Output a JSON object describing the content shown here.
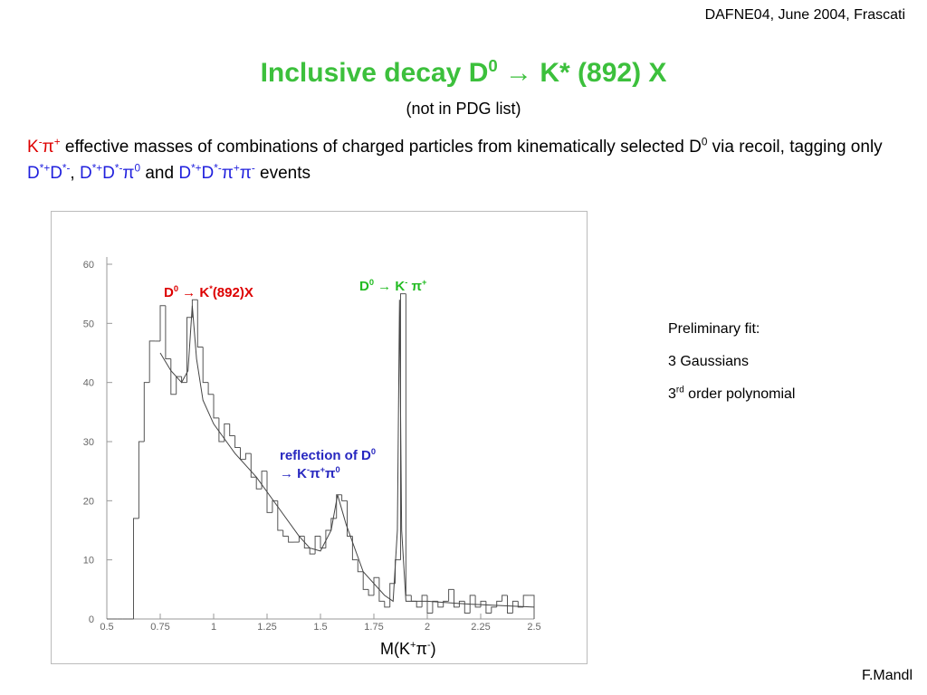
{
  "header": {
    "conference": "DAFNE04, June 2004, Frascati",
    "title": [
      {
        "t": "Inclusive decay D",
        "sup": "0"
      },
      {
        "t": " → K* (892) X"
      }
    ],
    "subtitle": "(not in PDG list)"
  },
  "description": [
    {
      "t": "K",
      "sup": "-",
      "color": "#dd0000"
    },
    {
      "t": "π",
      "sup": "+",
      "color": "#dd0000"
    },
    {
      "t": " effective masses of combinations of charged particles from kinematically selected D",
      "sup": "0"
    },
    {
      "t": " via recoil, tagging only "
    },
    {
      "t": "D",
      "sup": "*+",
      "color": "#1f1fdd"
    },
    {
      "t": "D",
      "sup": "*-",
      "color": "#1f1fdd"
    },
    {
      "t": ", "
    },
    {
      "t": "D",
      "sup": "*+",
      "color": "#1f1fdd"
    },
    {
      "t": "D",
      "sup": "*-",
      "color": "#1f1fdd"
    },
    {
      "t": "π",
      "sup": "0",
      "color": "#1f1fdd"
    },
    {
      "t": " and "
    },
    {
      "t": "D",
      "sup": "*+",
      "color": "#1f1fdd"
    },
    {
      "t": "D",
      "sup": "*-",
      "color": "#1f1fdd"
    },
    {
      "t": "π",
      "sup": "+",
      "color": "#1f1fdd"
    },
    {
      "t": "π",
      "sup": "-",
      "color": "#1f1fdd"
    },
    {
      "t": " events"
    }
  ],
  "chart_data": {
    "type": "histogram",
    "bins": [
      0.5,
      0.525,
      0.55,
      0.575,
      0.6,
      0.625,
      0.65,
      0.675,
      0.7,
      0.725,
      0.75,
      0.775,
      0.8,
      0.825,
      0.85,
      0.875,
      0.9,
      0.925,
      0.95,
      0.975,
      1.0,
      1.025,
      1.05,
      1.075,
      1.1,
      1.125,
      1.15,
      1.175,
      1.2,
      1.225,
      1.25,
      1.275,
      1.3,
      1.325,
      1.35,
      1.375,
      1.4,
      1.425,
      1.45,
      1.475,
      1.5,
      1.525,
      1.55,
      1.575,
      1.6,
      1.625,
      1.65,
      1.675,
      1.7,
      1.725,
      1.75,
      1.775,
      1.8,
      1.825,
      1.85,
      1.875,
      1.9,
      1.925,
      1.95,
      1.975,
      2.0,
      2.025,
      2.05,
      2.075,
      2.1,
      2.125,
      2.15,
      2.175,
      2.2,
      2.225,
      2.25,
      2.275,
      2.3,
      2.325,
      2.35,
      2.375,
      2.4,
      2.425,
      2.45,
      2.475,
      2.5
    ],
    "values": [
      0,
      0,
      0,
      0,
      0,
      17,
      30,
      40,
      47,
      47,
      53,
      44,
      38,
      41,
      40,
      51,
      54,
      46,
      40,
      38,
      34,
      30,
      33,
      31,
      29,
      27,
      28,
      24,
      22,
      25,
      18,
      20,
      15,
      14,
      13,
      13,
      14,
      12,
      11,
      14,
      12,
      15,
      17,
      21,
      20,
      14,
      10,
      8,
      5,
      4,
      7,
      3,
      2,
      6,
      10,
      55,
      4,
      3,
      2,
      4,
      1,
      3,
      2,
      3,
      5,
      2,
      3,
      1,
      4,
      2,
      3,
      1,
      2,
      3,
      4,
      1,
      3,
      2,
      4,
      4
    ],
    "color": "#555555",
    "fit": {
      "x": [
        0.75,
        0.8,
        0.85,
        0.88,
        0.9,
        0.92,
        0.95,
        1.0,
        1.1,
        1.2,
        1.3,
        1.4,
        1.45,
        1.5,
        1.55,
        1.58,
        1.62,
        1.7,
        1.8,
        1.84,
        1.86,
        1.87,
        1.88,
        1.9,
        2.0,
        2.2,
        2.5
      ],
      "values": [
        45,
        42,
        40,
        42,
        53,
        44,
        37,
        33,
        28,
        24,
        19,
        14,
        12,
        11.5,
        15,
        21,
        16,
        8,
        4,
        3,
        15,
        54,
        15,
        3,
        3,
        2.5,
        2
      ],
      "color": "#444444"
    },
    "xlim": [
      0.5,
      2.5
    ],
    "ylim": [
      0,
      60
    ],
    "xticks": [
      0.5,
      0.75,
      1,
      1.25,
      1.5,
      1.75,
      2,
      2.25,
      2.5
    ],
    "yticks": [
      0,
      10,
      20,
      30,
      40,
      50,
      60
    ],
    "xlabel": [
      {
        "t": "M(K",
        "sup": "+"
      },
      {
        "t": "π",
        "sup": "-"
      },
      {
        "t": ")"
      }
    ],
    "annotations": [
      [
        {
          "t": "D",
          "sup": "0"
        },
        {
          "t": " → K",
          "sup": "*"
        },
        {
          "t": "(892)X"
        }
      ],
      [
        {
          "t": "D",
          "sup": "0"
        },
        {
          "t": " → K",
          "sup": "-"
        },
        {
          "t": " π",
          "sup": "+"
        }
      ],
      [
        {
          "t": "reflection of D",
          "sup": "0"
        },
        {
          "t": " → K",
          "sup": "-"
        },
        {
          "t": "π",
          "sup": "+"
        },
        {
          "t": "π",
          "sup": "0"
        }
      ]
    ]
  },
  "fit_info": [
    [
      {
        "t": "Preliminary fit:"
      }
    ],
    [
      {
        "t": "3 Gaussians"
      }
    ],
    [
      {
        "t": "3",
        "sup": "rd"
      },
      {
        "t": " order polynomial"
      }
    ]
  ],
  "author": "F.Mandl"
}
